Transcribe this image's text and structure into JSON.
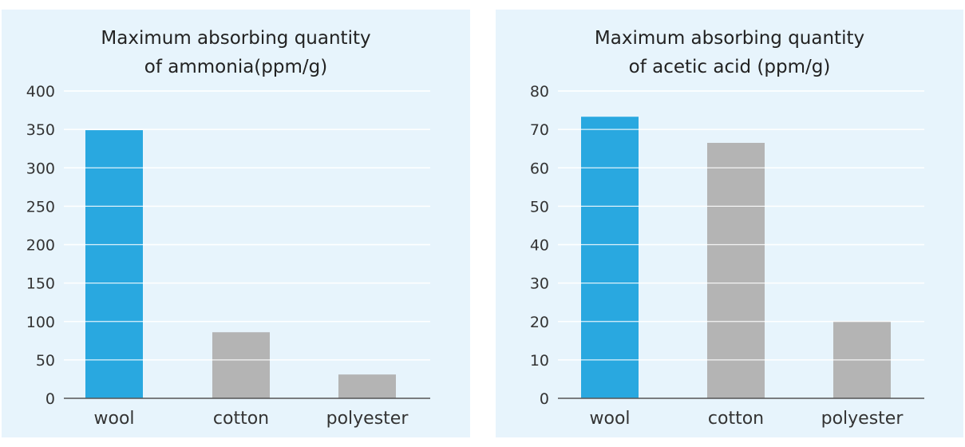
{
  "chart_data": [
    {
      "type": "bar",
      "title_lines": [
        "Maximum absorbing quantity",
        "of ammonia(ppm/g)"
      ],
      "categories": [
        "wool",
        "cotton",
        "polyester"
      ],
      "values": [
        349,
        86,
        31
      ],
      "bar_colors": [
        "#29a8e0",
        "#b4b4b4",
        "#b4b4b4"
      ],
      "yticks": [
        "0",
        "50",
        "100",
        "150",
        "200",
        "250",
        "300",
        "350",
        "400"
      ],
      "ylim": [
        0,
        400
      ],
      "grid": true
    },
    {
      "type": "bar",
      "title_lines": [
        "Maximum absorbing quantity",
        "of acetic acid (ppm/g)"
      ],
      "categories": [
        "wool",
        "cotton",
        "polyester"
      ],
      "values": [
        73.3,
        66.5,
        20
      ],
      "bar_colors": [
        "#29a8e0",
        "#b4b4b4",
        "#b4b4b4"
      ],
      "yticks": [
        "0",
        "10",
        "20",
        "30",
        "40",
        "50",
        "60",
        "70",
        "80"
      ],
      "ylim": [
        0,
        80
      ],
      "grid": true
    }
  ]
}
